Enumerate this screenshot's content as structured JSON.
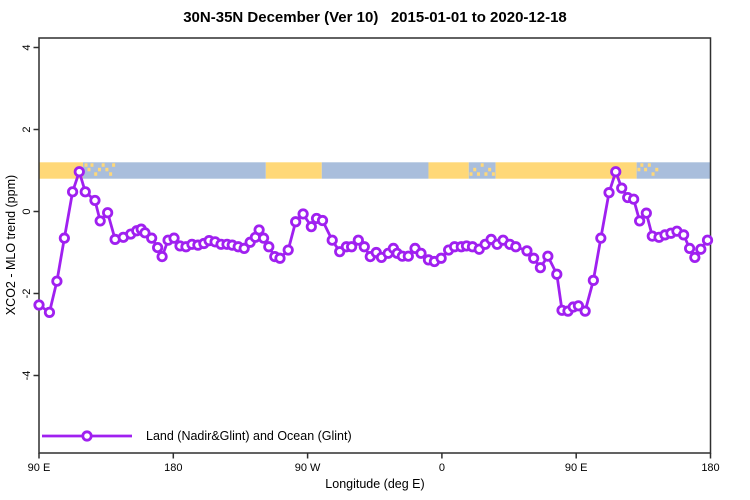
{
  "title": "30N-35N December (Ver 10)   2015-01-01 to 2020-12-18",
  "chart_data": {
    "type": "line",
    "title": "30N-35N December (Ver 10)   2015-01-01 to 2020-12-18",
    "xlabel": "Longitude (deg E)",
    "ylabel": "XCO2 - MLO trend (ppm)",
    "legend_position": "bottom-left-inside",
    "grid": false,
    "axis_color": "#2f2f2f",
    "x_range_deg": [
      90,
      540
    ],
    "y_range": [
      -5.9,
      4.2
    ],
    "x_ticks": [
      {
        "deg": 90,
        "label": "90 E"
      },
      {
        "deg": 180,
        "label": "180"
      },
      {
        "deg": 270,
        "label": "90 W"
      },
      {
        "deg": 360,
        "label": "0"
      },
      {
        "deg": 450,
        "label": "90 E"
      },
      {
        "deg": 540,
        "label": "180"
      }
    ],
    "y_ticks": [
      {
        "value": 4,
        "label": "4"
      },
      {
        "value": 2,
        "label": "2"
      },
      {
        "value": 0,
        "label": "0"
      },
      {
        "value": -2,
        "label": "-2"
      },
      {
        "value": -4,
        "label": "-4"
      }
    ],
    "map_band": {
      "center_value": 1.0,
      "half_height_value": 0.2,
      "land_color": "#FFD878",
      "ocean_color": "#A9BEDC",
      "segments": [
        {
          "from": 90,
          "to": 119.5,
          "type": "land"
        },
        {
          "from": 119.5,
          "to": 242,
          "type": "ocean"
        },
        {
          "from": 242,
          "to": 279.5,
          "type": "land"
        },
        {
          "from": 279.5,
          "to": 351,
          "type": "ocean"
        },
        {
          "from": 351,
          "to": 378,
          "type": "land"
        },
        {
          "from": 378,
          "to": 396,
          "type": "ocean"
        },
        {
          "from": 396,
          "to": 490.5,
          "type": "land"
        },
        {
          "from": 490.5,
          "to": 540,
          "type": "ocean"
        }
      ],
      "speckles": [
        {
          "deg": 121.5,
          "row": 0,
          "type": "land"
        },
        {
          "deg": 123.5,
          "row": 1,
          "type": "land"
        },
        {
          "deg": 125.5,
          "row": 0,
          "type": "land"
        },
        {
          "deg": 128,
          "row": 2,
          "type": "land"
        },
        {
          "deg": 130.5,
          "row": 1,
          "type": "land"
        },
        {
          "deg": 133,
          "row": 0,
          "type": "land"
        },
        {
          "deg": 135.5,
          "row": 1,
          "type": "land"
        },
        {
          "deg": 138,
          "row": 2,
          "type": "land"
        },
        {
          "deg": 140,
          "row": 0,
          "type": "land"
        },
        {
          "deg": 379.5,
          "row": 2,
          "type": "land"
        },
        {
          "deg": 382,
          "row": 1,
          "type": "land"
        },
        {
          "deg": 384.5,
          "row": 2,
          "type": "land"
        },
        {
          "deg": 387,
          "row": 0,
          "type": "land"
        },
        {
          "deg": 389.5,
          "row": 2,
          "type": "land"
        },
        {
          "deg": 392,
          "row": 1,
          "type": "land"
        },
        {
          "deg": 394.5,
          "row": 2,
          "type": "land"
        },
        {
          "deg": 492,
          "row": 1,
          "type": "land"
        },
        {
          "deg": 494,
          "row": 0,
          "type": "land"
        },
        {
          "deg": 496.5,
          "row": 1,
          "type": "land"
        },
        {
          "deg": 499,
          "row": 0,
          "type": "land"
        },
        {
          "deg": 501.5,
          "row": 2,
          "type": "land"
        },
        {
          "deg": 504,
          "row": 1,
          "type": "land"
        }
      ]
    },
    "series": [
      {
        "name": "Land (Nadir&Glint) and Ocean (Glint)",
        "color": "#A020F0",
        "marker": "open-circle",
        "points": [
          [
            90,
            -2.28
          ],
          [
            97,
            -2.46
          ],
          [
            102,
            -1.7
          ],
          [
            107,
            -0.65
          ],
          [
            112.5,
            0.48
          ],
          [
            117,
            0.97
          ],
          [
            121,
            0.48
          ],
          [
            127.5,
            0.27
          ],
          [
            131,
            -0.23
          ],
          [
            136,
            -0.03
          ],
          [
            141,
            -0.68
          ],
          [
            146.5,
            -0.63
          ],
          [
            151.5,
            -0.55
          ],
          [
            155.5,
            -0.47
          ],
          [
            158.5,
            -0.43
          ],
          [
            161,
            -0.52
          ],
          [
            165.5,
            -0.65
          ],
          [
            169.5,
            -0.88
          ],
          [
            172.5,
            -1.1
          ],
          [
            176.5,
            -0.7
          ],
          [
            180.5,
            -0.65
          ],
          [
            184.5,
            -0.84
          ],
          [
            188.5,
            -0.86
          ],
          [
            192.5,
            -0.8
          ],
          [
            196.5,
            -0.82
          ],
          [
            200.5,
            -0.78
          ],
          [
            204,
            -0.71
          ],
          [
            208,
            -0.74
          ],
          [
            212,
            -0.8
          ],
          [
            216,
            -0.8
          ],
          [
            219.5,
            -0.82
          ],
          [
            223.5,
            -0.86
          ],
          [
            227.5,
            -0.9
          ],
          [
            231.5,
            -0.75
          ],
          [
            235,
            -0.63
          ],
          [
            237.5,
            -0.45
          ],
          [
            240.5,
            -0.65
          ],
          [
            244,
            -0.86
          ],
          [
            248,
            -1.1
          ],
          [
            251.5,
            -1.14
          ],
          [
            257,
            -0.94
          ],
          [
            262,
            -0.25
          ],
          [
            267,
            -0.06
          ],
          [
            272.5,
            -0.37
          ],
          [
            276,
            -0.17
          ],
          [
            280,
            -0.22
          ],
          [
            286.5,
            -0.7
          ],
          [
            291.5,
            -0.98
          ],
          [
            296,
            -0.86
          ],
          [
            299.5,
            -0.86
          ],
          [
            304,
            -0.7
          ],
          [
            308,
            -0.86
          ],
          [
            312,
            -1.1
          ],
          [
            316,
            -1.0
          ],
          [
            319.5,
            -1.12
          ],
          [
            324,
            -1.02
          ],
          [
            327.5,
            -0.9
          ],
          [
            330,
            -1.02
          ],
          [
            333.5,
            -1.09
          ],
          [
            337.5,
            -1.09
          ],
          [
            342,
            -0.9
          ],
          [
            346,
            -1.02
          ],
          [
            351,
            -1.18
          ],
          [
            355,
            -1.22
          ],
          [
            359.5,
            -1.14
          ],
          [
            364.5,
            -0.94
          ],
          [
            368.5,
            -0.86
          ],
          [
            373,
            -0.86
          ],
          [
            376.5,
            -0.84
          ],
          [
            380.5,
            -0.86
          ],
          [
            385,
            -0.92
          ],
          [
            389,
            -0.8
          ],
          [
            393,
            -0.68
          ],
          [
            397,
            -0.8
          ],
          [
            401,
            -0.7
          ],
          [
            405.5,
            -0.8
          ],
          [
            409.5,
            -0.86
          ],
          [
            417,
            -0.96
          ],
          [
            421.5,
            -1.14
          ],
          [
            426,
            -1.37
          ],
          [
            431,
            -1.09
          ],
          [
            437,
            -1.53
          ],
          [
            440.5,
            -2.41
          ],
          [
            444.5,
            -2.43
          ],
          [
            448,
            -2.33
          ],
          [
            451.5,
            -2.3
          ],
          [
            456,
            -2.43
          ],
          [
            461.5,
            -1.68
          ],
          [
            466.5,
            -0.65
          ],
          [
            472,
            0.46
          ],
          [
            476.5,
            0.97
          ],
          [
            480.5,
            0.57
          ],
          [
            484.5,
            0.34
          ],
          [
            488.5,
            0.3
          ],
          [
            492.5,
            -0.23
          ],
          [
            497,
            -0.04
          ],
          [
            501,
            -0.6
          ],
          [
            505.5,
            -0.63
          ],
          [
            509.5,
            -0.57
          ],
          [
            513.5,
            -0.53
          ],
          [
            517.5,
            -0.48
          ],
          [
            522,
            -0.57
          ],
          [
            526,
            -0.9
          ],
          [
            529.5,
            -1.12
          ],
          [
            533.5,
            -0.92
          ],
          [
            538,
            -0.7
          ]
        ]
      }
    ]
  }
}
